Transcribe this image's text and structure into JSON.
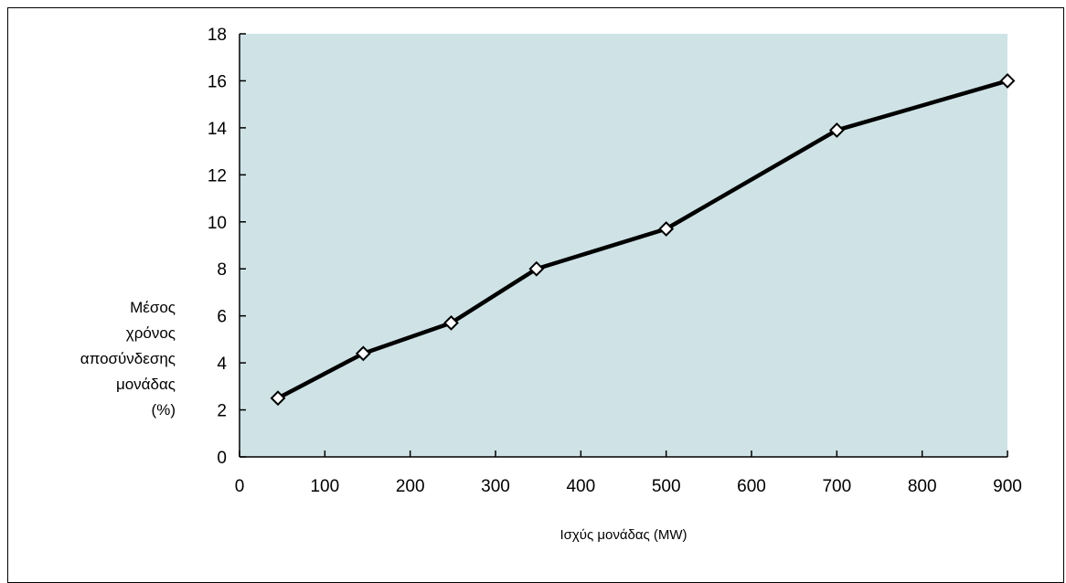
{
  "chart_data": {
    "type": "line",
    "title": "",
    "xlabel": "Ισχύς μονάδας (MW)",
    "ylabel_lines": [
      "Μέσος",
      "χρόνος",
      "αποσύνδεσης",
      "μονάδας",
      "(%)"
    ],
    "xlim": [
      0,
      900
    ],
    "ylim": [
      0,
      18
    ],
    "x_ticks": [
      0,
      100,
      200,
      300,
      400,
      500,
      600,
      700,
      800,
      900
    ],
    "y_ticks": [
      0,
      2,
      4,
      6,
      8,
      10,
      12,
      14,
      16,
      18
    ],
    "grid": false,
    "legend": "none",
    "series": [
      {
        "x": [
          45,
          145,
          248,
          348,
          500,
          700,
          900
        ],
        "y": [
          2.5,
          4.4,
          5.7,
          8.0,
          9.7,
          13.9,
          16.0
        ]
      }
    ],
    "colors": {
      "plot_background": "#cfe3e6",
      "line": "#000000",
      "marker_fill": "#ffffff"
    }
  }
}
